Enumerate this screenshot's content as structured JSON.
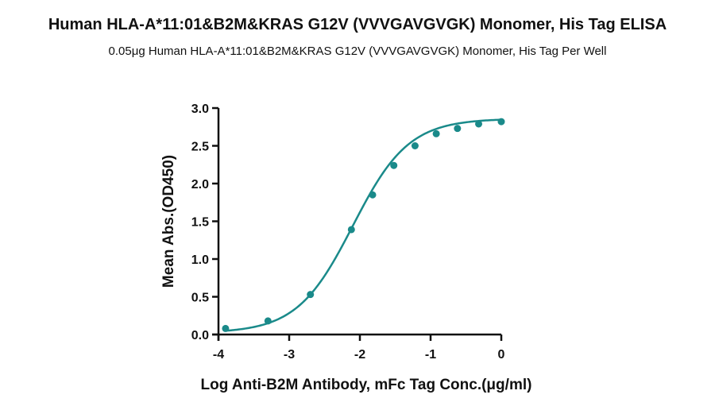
{
  "chart_data": {
    "type": "scatter",
    "title": "Human HLA-A*11:01&B2M&KRAS G12V (VVVGAVGVGK) Monomer, His Tag ELISA",
    "subtitle": "0.05μg  Human HLA-A*11:01&B2M&KRAS G12V (VVVGAVGVGK) Monomer, His Tag Per Well",
    "xlabel": "Log Anti-B2M Antibody, mFc Tag Conc.(μg/ml)",
    "ylabel": "Mean Abs.(OD450)",
    "xlim": [
      -4,
      0
    ],
    "ylim": [
      0,
      3.0
    ],
    "xticks": [
      "-4",
      "-3",
      "-2",
      "-1",
      "0"
    ],
    "yticks": [
      "0.0",
      "0.5",
      "1.0",
      "1.5",
      "2.0",
      "2.5",
      "3.0"
    ],
    "grid": false,
    "fit": "four-parameter logistic curve",
    "color": "#1a8a8a",
    "series": [
      {
        "x": [
          -3.9,
          -3.3,
          -2.7,
          -2.12,
          -1.82,
          -1.52,
          -1.22,
          -0.92,
          -0.62,
          -0.32,
          0.0
        ],
        "y": [
          0.08,
          0.18,
          0.53,
          1.39,
          1.85,
          2.24,
          2.5,
          2.66,
          2.73,
          2.79,
          2.82
        ]
      }
    ]
  }
}
